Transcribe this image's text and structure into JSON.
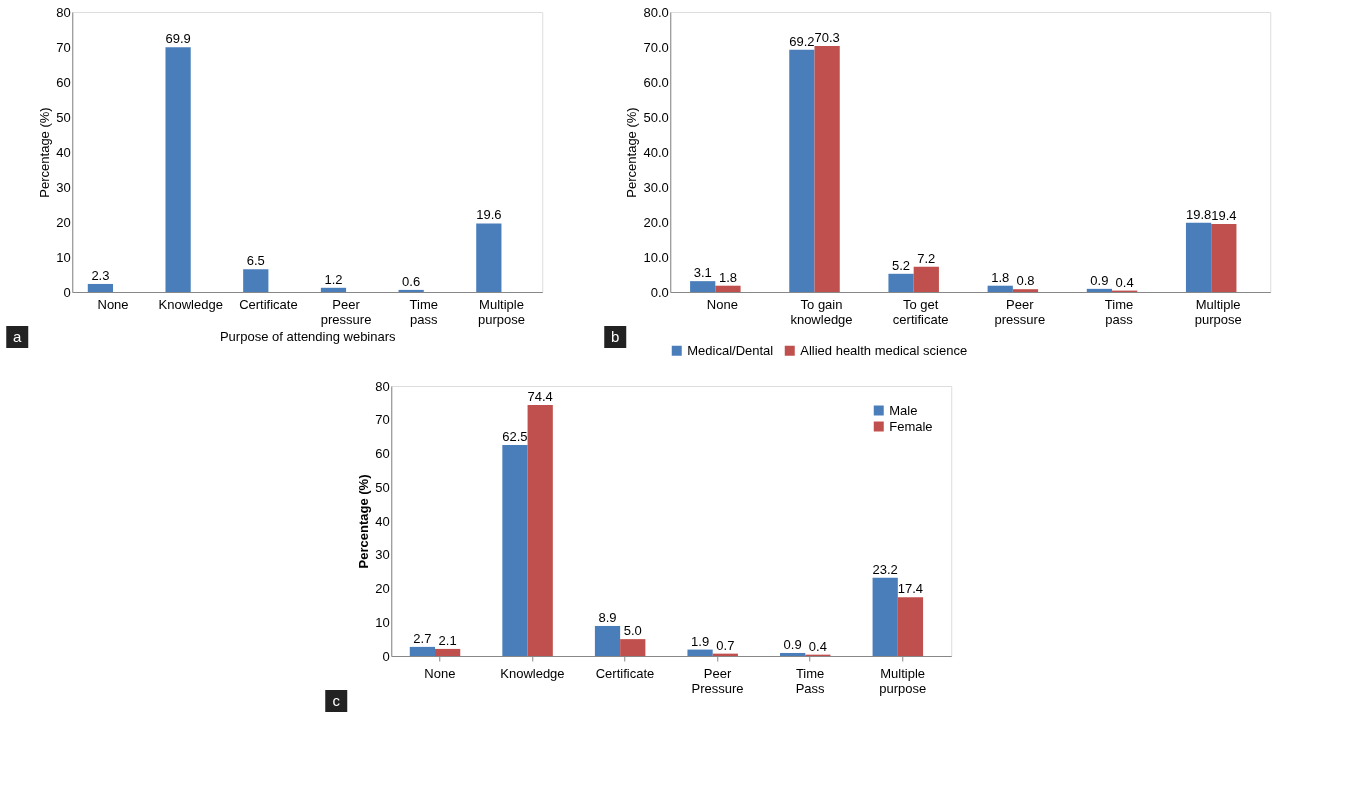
{
  "chart_data": [
    {
      "type": "bar",
      "categories": [
        "None",
        "Knowledge",
        "Certificate",
        "Peer pressure",
        "Time pass",
        "Multiple purpose"
      ],
      "values": [
        2.3,
        69.9,
        6.5,
        1.2,
        0.6,
        19.6
      ],
      "color": "#4a7ebb",
      "xlabel": "Purpose of attending webinars",
      "ylabel": "Percentage (%)",
      "ylim": [
        0,
        80
      ],
      "yticks": [
        0,
        10,
        20,
        30,
        40,
        50,
        60,
        70,
        80
      ],
      "data_labels": true,
      "grid": false,
      "legend": false,
      "annotations": [
        "a"
      ]
    },
    {
      "type": "bar",
      "categories": [
        "None",
        "To gain knowledge",
        "To get certificate",
        "Peer pressure",
        "Time pass",
        "Multiple purpose"
      ],
      "series": [
        {
          "name": "Medical/Dental",
          "color": "#4a7ebb",
          "values": [
            3.1,
            69.2,
            5.2,
            1.8,
            0.9,
            19.8
          ]
        },
        {
          "name": "Allied health medical science",
          "color": "#c0504d",
          "values": [
            1.8,
            70.3,
            7.2,
            0.8,
            0.4,
            19.4
          ]
        }
      ],
      "ylabel": "Percentage (%)",
      "ylim": [
        0,
        80
      ],
      "yticks": [
        {
          "value": 0,
          "label": "0.0"
        },
        {
          "value": 10,
          "label": "10.0"
        },
        {
          "value": 20,
          "label": "20.0"
        },
        {
          "value": 30,
          "label": "30.0"
        },
        {
          "value": 40,
          "label": "40.0"
        },
        {
          "value": 50,
          "label": "50.0"
        },
        {
          "value": 60,
          "label": "60.0"
        },
        {
          "value": 70,
          "label": "70.0"
        },
        {
          "value": 80,
          "label": "80.0"
        }
      ],
      "data_labels": true,
      "grid": false,
      "legend": "bottom",
      "annotations": [
        "b"
      ]
    },
    {
      "type": "bar",
      "categories": [
        "None",
        "Knowledge",
        "Certificate",
        "Peer Pressure",
        "Time Pass",
        "Multiple purpose"
      ],
      "series": [
        {
          "name": "Male",
          "color": "#4a7ebb",
          "values": [
            2.7,
            62.5,
            8.9,
            1.9,
            0.9,
            23.2
          ],
          "value_labels": [
            "2.7",
            "62.5",
            "8.9",
            "1.9",
            "0.9",
            "23.2"
          ]
        },
        {
          "name": "Female",
          "color": "#c0504d",
          "values": [
            2.1,
            74.4,
            5.0,
            0.7,
            0.4,
            17.4
          ],
          "value_labels": [
            "2.1",
            "74.4",
            "5.0",
            "0.7",
            "0.4",
            "17.4"
          ]
        }
      ],
      "ylabel": "Percentage (%)",
      "ylim": [
        0,
        80
      ],
      "yticks": [
        0,
        10,
        20,
        30,
        40,
        50,
        60,
        70,
        80
      ],
      "data_labels": true,
      "grid": false,
      "legend": "top right",
      "annotations": [
        "c"
      ]
    }
  ]
}
